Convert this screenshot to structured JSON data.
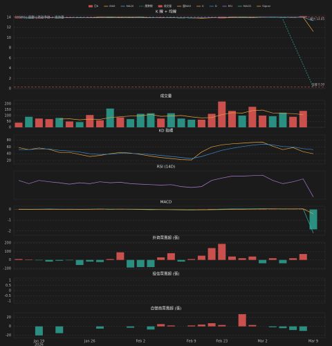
{
  "chart_data": [
    {
      "type": "candlestick",
      "title": "K 線 + 均線",
      "subtitle": "WOOC | 盤整 | 跌破季線 + 成交量",
      "ylim": [
        0,
        14.4
      ],
      "yticks": [
        0,
        2,
        4,
        6,
        8,
        10,
        12,
        14
      ],
      "grid": true,
      "series": [
        {
          "name": "日K",
          "kind": "candle",
          "up_color": "#c9504c",
          "down_color": "#2a8f80",
          "open": [
            13.8,
            13.9,
            13.8,
            13.9,
            14.0,
            13.9,
            14.0,
            13.9,
            14.0,
            14.1,
            13.9,
            14.0,
            14.1,
            14.0,
            13.9,
            14.0,
            13.9,
            13.9,
            13.8,
            13.9,
            13.8,
            14.0,
            14.1,
            13.9,
            14.0,
            14.1,
            14.0,
            13.9,
            14.0,
            null
          ],
          "close": [
            13.9,
            13.8,
            13.9,
            14.0,
            13.9,
            14.0,
            13.9,
            14.0,
            14.1,
            13.9,
            14.0,
            13.9,
            14.0,
            13.9,
            14.0,
            13.9,
            13.8,
            13.8,
            13.9,
            14.0,
            14.1,
            14.1,
            14.0,
            14.0,
            14.1,
            14.0,
            13.9,
            14.0,
            14.2,
            null
          ]
        },
        {
          "name": "MA5",
          "kind": "line",
          "color": "#e8a33d",
          "dash": false,
          "values": [
            null,
            null,
            null,
            null,
            13.9,
            13.9,
            13.9,
            13.9,
            14.0,
            14.0,
            14.0,
            14.0,
            14.0,
            13.9,
            13.9,
            13.9,
            13.9,
            13.9,
            13.8,
            13.9,
            13.9,
            14.0,
            14.0,
            14.0,
            14.0,
            14.0,
            14.0,
            14.0,
            14.0,
            11.2
          ]
        },
        {
          "name": "MA20",
          "kind": "line",
          "color": "#5aa0d8",
          "dash": false,
          "values": [
            13.9,
            13.9,
            13.9,
            13.9,
            13.9,
            13.9,
            13.9,
            13.9,
            13.9,
            13.9,
            13.9,
            13.9,
            13.9,
            13.9,
            13.9,
            13.9,
            13.9,
            13.9,
            13.9,
            13.9,
            13.9,
            13.9,
            13.9,
            13.9,
            14.0,
            14.0,
            14.0,
            14.0,
            14.0,
            13.3
          ]
        },
        {
          "name": "趨勢線",
          "kind": "line",
          "color": "#2bb3a3",
          "dash": true,
          "values": [
            null,
            null,
            null,
            null,
            null,
            null,
            null,
            null,
            null,
            null,
            null,
            null,
            null,
            null,
            null,
            null,
            null,
            null,
            null,
            null,
            null,
            null,
            null,
            null,
            null,
            null,
            13.6,
            9.1,
            4.7,
            0.2
          ]
        }
      ],
      "annotations": [
        {
          "text": "壓力 14.05",
          "value": 14.05,
          "color": "#c9504c"
        },
        {
          "text": "支撐 0.30",
          "value": 0.3,
          "color": "#c9504c"
        }
      ]
    },
    {
      "type": "bar",
      "title": "成交量",
      "ylim": [
        0,
        230
      ],
      "yticks": [
        0,
        50,
        100,
        150,
        200
      ],
      "grid": true,
      "series": [
        {
          "name": "成交量",
          "kind": "bar",
          "color_by": "candle",
          "up_color": "#c9504c",
          "down_color": "#2a8f80",
          "values": [
            40,
            90,
            75,
            70,
            80,
            50,
            45,
            105,
            60,
            160,
            85,
            70,
            115,
            120,
            75,
            120,
            75,
            65,
            65,
            115,
            220,
            140,
            100,
            175,
            100,
            95,
            125,
            90,
            140,
            null
          ]
        },
        {
          "name": "量MA5",
          "kind": "line",
          "color": "#e8a33d",
          "dash": false,
          "values": [
            null,
            null,
            null,
            null,
            71,
            73,
            64,
            70,
            68,
            84,
            90,
            96,
            98,
            110,
            94,
            97,
            101,
            89,
            80,
            84,
            108,
            125,
            121,
            143,
            147,
            122,
            119,
            117,
            108,
            null
          ]
        }
      ]
    },
    {
      "type": "line",
      "title": "KD 指標",
      "ylim": [
        10,
        95
      ],
      "yticks": [
        20,
        40,
        60,
        80
      ],
      "grid": true,
      "series": [
        {
          "name": "K",
          "kind": "line",
          "color": "#e8a33d",
          "dash": false,
          "values": [
            58,
            52,
            57,
            53,
            44,
            44,
            38,
            32,
            35,
            40,
            44,
            42,
            38,
            33,
            29,
            26,
            23,
            22,
            45,
            60,
            66,
            69,
            71,
            73,
            74,
            62,
            52,
            58,
            46,
            40
          ]
        },
        {
          "name": "D",
          "kind": "line",
          "color": "#3d8fd8",
          "dash": false,
          "values": [
            52,
            52,
            54,
            54,
            50,
            48,
            45,
            40,
            38,
            39,
            41,
            41,
            40,
            38,
            35,
            32,
            29,
            26,
            32,
            41,
            50,
            56,
            61,
            65,
            68,
            66,
            61,
            60,
            55,
            52
          ]
        }
      ]
    },
    {
      "type": "line",
      "title": "RSI (14D)",
      "ylim": [
        15,
        75
      ],
      "grid": true,
      "series": [
        {
          "name": "RSI",
          "kind": "line",
          "color": "#b07ad8",
          "dash": false,
          "values": [
            55,
            48,
            55,
            52,
            50,
            47,
            50,
            48,
            52,
            50,
            51,
            48,
            47,
            46,
            45,
            46,
            42,
            40,
            42,
            55,
            60,
            64,
            64,
            65,
            66,
            55,
            48,
            52,
            58,
            20
          ]
        }
      ]
    },
    {
      "type": "macd",
      "title": "MACD",
      "ylim": [
        -2.4,
        0.3
      ],
      "yticks": [
        -2,
        -1,
        0
      ],
      "grid": true,
      "series": [
        {
          "kind": "bar",
          "up_color": "#c9504c",
          "down_color": "#2a8f80",
          "values": [
            0.02,
            -0.01,
            0.01,
            0.02,
            -0.01,
            0.01,
            -0.02,
            0.01,
            0.02,
            -0.02,
            0.01,
            -0.01,
            -0.02,
            -0.03,
            0.01,
            -0.02,
            -0.03,
            -0.03,
            0.02,
            0.04,
            0.05,
            0.04,
            0.02,
            0.03,
            0.04,
            0.02,
            -0.01,
            0.01,
            0.02,
            -1.85
          ]
        },
        {
          "name": "MACD",
          "kind": "line",
          "color": "#2bb3a3",
          "dash": false,
          "values": [
            0.03,
            0.02,
            0.03,
            0.04,
            0.03,
            0.03,
            0.02,
            0.03,
            0.04,
            0.02,
            0.03,
            0.02,
            0,
            -0.02,
            -0.01,
            -0.02,
            -0.04,
            -0.05,
            -0.03,
            0,
            0.03,
            0.05,
            0.05,
            0.06,
            0.07,
            0.06,
            0.05,
            0.05,
            0.06,
            -2.2
          ]
        },
        {
          "name": "Signal",
          "kind": "line",
          "color": "#e8a33d",
          "dash": false,
          "values": [
            0.01,
            0.01,
            0.02,
            0.02,
            0.02,
            0.02,
            0.02,
            0.02,
            0.03,
            0.03,
            0.03,
            0.03,
            0.02,
            0.01,
            0,
            -0.01,
            -0.02,
            -0.03,
            -0.03,
            -0.02,
            -0.01,
            0.01,
            0.02,
            0.03,
            0.04,
            0.05,
            0.05,
            0.05,
            0.05,
            -0.4
          ]
        }
      ]
    },
    {
      "type": "bar",
      "title": "外資買賣超 (張)",
      "ylim": [
        -110,
        210
      ],
      "yticks": [
        -100,
        0,
        100,
        200
      ],
      "grid": true,
      "series": [
        {
          "kind": "bar",
          "up_color": "#c9504c",
          "down_color": "#2a8f80",
          "values": [
            10,
            5,
            -5,
            -20,
            -10,
            -5,
            -60,
            -20,
            -25,
            10,
            90,
            -90,
            -85,
            -85,
            30,
            80,
            -20,
            10,
            50,
            140,
            190,
            40,
            20,
            40,
            -40,
            20,
            -40,
            20,
            70,
            null
          ]
        }
      ]
    },
    {
      "type": "bar",
      "title": "投信買賣超 (張)",
      "ylim": [
        -1.2,
        1.2
      ],
      "yticks": [
        -1,
        -0.5,
        0,
        0.5,
        1
      ],
      "grid": true,
      "series": [
        {
          "kind": "bar",
          "up_color": "#c9504c",
          "down_color": "#2a8f80",
          "values": [
            0,
            0,
            0,
            0,
            0,
            0,
            0,
            0,
            0,
            0,
            0,
            0,
            0,
            0,
            0,
            0,
            0,
            0,
            0,
            0,
            0,
            0,
            0,
            0,
            0,
            0,
            0,
            0,
            0,
            0
          ]
        }
      ]
    },
    {
      "type": "bar",
      "title": "自營商買賣超 (張)",
      "ylim": [
        -25,
        30
      ],
      "yticks": [
        -20,
        0,
        20
      ],
      "grid": true,
      "categories": [
        null,
        null,
        "Jan 19",
        null,
        null,
        null,
        null,
        "Jan 26",
        null,
        null,
        null,
        null,
        "Feb 2",
        null,
        null,
        null,
        null,
        "Feb 9",
        null,
        null,
        "Feb 23",
        null,
        null,
        null,
        "Mar 2",
        null,
        null,
        null,
        null,
        "Mar 9"
      ],
      "year_label": "2026",
      "series": [
        {
          "kind": "bar",
          "up_color": "#c9504c",
          "down_color": "#2a8f80",
          "values": [
            0,
            0,
            -20,
            0,
            -15,
            0,
            0,
            0,
            -5,
            0,
            0,
            -3,
            0,
            -7,
            5,
            2,
            0,
            2,
            4,
            7,
            3,
            0,
            27,
            3,
            0,
            -2,
            -4,
            -8,
            -10,
            null
          ]
        }
      ]
    }
  ]
}
